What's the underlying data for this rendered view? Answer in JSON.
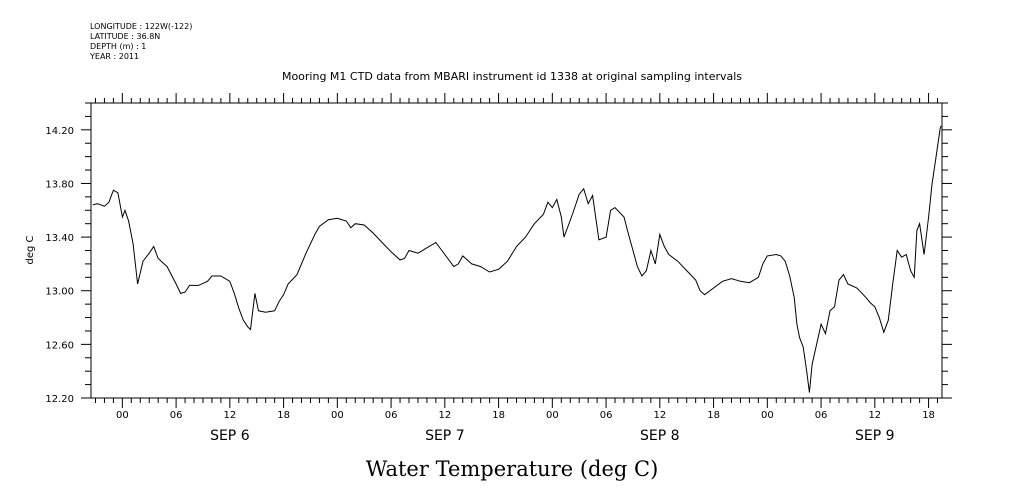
{
  "meta_lines": [
    "LONGITUDE : 122W(-122)",
    "LATITUDE : 36.8N",
    "DEPTH (m) : 1",
    "YEAR : 2011"
  ],
  "chart_data": {
    "type": "line",
    "title": "Mooring M1 CTD data from MBARI instrument id 1338 at original sampling intervals",
    "xlabel": "Water Temperature (deg C)",
    "ylabel": "deg C",
    "xlim": [
      -3.5,
      91.5
    ],
    "ylim": [
      12.2,
      14.4
    ],
    "x_unit": "hours since SEP 6 00:00",
    "x_tick_labels": [
      "00",
      "06",
      "12",
      "18",
      "00",
      "06",
      "12",
      "18",
      "00",
      "06",
      "12",
      "18",
      "00",
      "06",
      "12",
      "18"
    ],
    "x_tick_hours": [
      0,
      6,
      12,
      18,
      24,
      30,
      36,
      42,
      48,
      54,
      60,
      66,
      72,
      78,
      84,
      90
    ],
    "day_labels": [
      "SEP 6",
      "SEP 7",
      "SEP 8",
      "SEP 9"
    ],
    "day_label_hours": [
      12,
      36,
      60,
      84
    ],
    "y_tick_labels": [
      "12.20",
      "12.60",
      "13.00",
      "13.40",
      "13.80",
      "14.20"
    ],
    "y_ticks": [
      12.2,
      12.6,
      13.0,
      13.4,
      13.8,
      14.2
    ],
    "grid": false,
    "series": [
      {
        "name": "",
        "color": "#000000",
        "points": [
          [
            -3.3,
            13.64
          ],
          [
            -2.8,
            13.65
          ],
          [
            -2.0,
            13.63
          ],
          [
            -1.5,
            13.66
          ],
          [
            -1.0,
            13.75
          ],
          [
            -0.5,
            13.73
          ],
          [
            0.0,
            13.55
          ],
          [
            0.3,
            13.6
          ],
          [
            0.7,
            13.52
          ],
          [
            1.2,
            13.35
          ],
          [
            1.7,
            13.05
          ],
          [
            2.3,
            13.22
          ],
          [
            3.0,
            13.28
          ],
          [
            3.5,
            13.33
          ],
          [
            4.0,
            13.24
          ],
          [
            5.0,
            13.18
          ],
          [
            6.0,
            13.05
          ],
          [
            6.5,
            12.98
          ],
          [
            7.0,
            12.99
          ],
          [
            7.5,
            13.04
          ],
          [
            8.5,
            13.04
          ],
          [
            9.5,
            13.07
          ],
          [
            10.0,
            13.11
          ],
          [
            11.0,
            13.11
          ],
          [
            12.0,
            13.07
          ],
          [
            12.5,
            12.98
          ],
          [
            13.0,
            12.87
          ],
          [
            13.5,
            12.78
          ],
          [
            14.0,
            12.73
          ],
          [
            14.3,
            12.71
          ],
          [
            14.8,
            12.98
          ],
          [
            15.2,
            12.85
          ],
          [
            16.0,
            12.84
          ],
          [
            17.0,
            12.85
          ],
          [
            17.5,
            12.92
          ],
          [
            18.0,
            12.97
          ],
          [
            18.5,
            13.05
          ],
          [
            19.5,
            13.12
          ],
          [
            20.5,
            13.28
          ],
          [
            21.5,
            13.42
          ],
          [
            22.0,
            13.48
          ],
          [
            23.0,
            13.53
          ],
          [
            24.0,
            13.54
          ],
          [
            25.0,
            13.52
          ],
          [
            25.5,
            13.47
          ],
          [
            26.0,
            13.5
          ],
          [
            27.0,
            13.49
          ],
          [
            28.0,
            13.43
          ],
          [
            29.0,
            13.36
          ],
          [
            30.0,
            13.29
          ],
          [
            31.0,
            13.23
          ],
          [
            31.5,
            13.24
          ],
          [
            32.0,
            13.3
          ],
          [
            33.0,
            13.28
          ],
          [
            34.0,
            13.32
          ],
          [
            35.0,
            13.36
          ],
          [
            36.0,
            13.27
          ],
          [
            37.0,
            13.18
          ],
          [
            37.5,
            13.2
          ],
          [
            38.0,
            13.26
          ],
          [
            39.0,
            13.2
          ],
          [
            40.0,
            13.18
          ],
          [
            41.0,
            13.14
          ],
          [
            42.0,
            13.16
          ],
          [
            43.0,
            13.22
          ],
          [
            44.0,
            13.33
          ],
          [
            45.0,
            13.4
          ],
          [
            46.0,
            13.5
          ],
          [
            47.0,
            13.57
          ],
          [
            47.5,
            13.66
          ],
          [
            48.0,
            13.62
          ],
          [
            48.5,
            13.68
          ],
          [
            49.0,
            13.55
          ],
          [
            49.3,
            13.4
          ],
          [
            49.8,
            13.49
          ],
          [
            50.3,
            13.58
          ],
          [
            51.0,
            13.72
          ],
          [
            51.5,
            13.76
          ],
          [
            52.0,
            13.65
          ],
          [
            52.5,
            13.71
          ],
          [
            53.2,
            13.38
          ],
          [
            54.0,
            13.4
          ],
          [
            54.5,
            13.6
          ],
          [
            55.0,
            13.62
          ],
          [
            56.0,
            13.55
          ],
          [
            56.5,
            13.42
          ],
          [
            57.0,
            13.3
          ],
          [
            57.5,
            13.18
          ],
          [
            58.0,
            13.11
          ],
          [
            58.5,
            13.15
          ],
          [
            59.0,
            13.3
          ],
          [
            59.5,
            13.2
          ],
          [
            60.0,
            13.42
          ],
          [
            60.5,
            13.33
          ],
          [
            61.0,
            13.27
          ],
          [
            62.0,
            13.22
          ],
          [
            63.0,
            13.15
          ],
          [
            64.0,
            13.08
          ],
          [
            64.5,
            13.0
          ],
          [
            65.0,
            12.97
          ],
          [
            66.0,
            13.02
          ],
          [
            67.0,
            13.07
          ],
          [
            68.0,
            13.09
          ],
          [
            69.0,
            13.07
          ],
          [
            70.0,
            13.06
          ],
          [
            71.0,
            13.1
          ],
          [
            71.5,
            13.2
          ],
          [
            72.0,
            13.26
          ],
          [
            73.0,
            13.27
          ],
          [
            73.5,
            13.26
          ],
          [
            74.0,
            13.22
          ],
          [
            74.5,
            13.11
          ],
          [
            75.0,
            12.95
          ],
          [
            75.3,
            12.75
          ],
          [
            75.6,
            12.65
          ],
          [
            76.0,
            12.58
          ],
          [
            76.4,
            12.4
          ],
          [
            76.7,
            12.24
          ],
          [
            77.0,
            12.45
          ],
          [
            77.5,
            12.6
          ],
          [
            78.0,
            12.75
          ],
          [
            78.5,
            12.68
          ],
          [
            79.0,
            12.85
          ],
          [
            79.5,
            12.88
          ],
          [
            80.0,
            13.08
          ],
          [
            80.5,
            13.12
          ],
          [
            81.0,
            13.05
          ],
          [
            82.0,
            13.02
          ],
          [
            83.0,
            12.95
          ],
          [
            83.5,
            12.91
          ],
          [
            84.0,
            12.88
          ],
          [
            84.5,
            12.8
          ],
          [
            85.0,
            12.69
          ],
          [
            85.5,
            12.78
          ],
          [
            86.0,
            13.05
          ],
          [
            86.5,
            13.3
          ],
          [
            87.0,
            13.25
          ],
          [
            87.5,
            13.27
          ],
          [
            88.0,
            13.15
          ],
          [
            88.4,
            13.1
          ],
          [
            88.7,
            13.45
          ],
          [
            89.0,
            13.5
          ],
          [
            89.5,
            13.27
          ],
          [
            90.0,
            13.55
          ],
          [
            90.4,
            13.8
          ],
          [
            90.8,
            13.98
          ],
          [
            91.1,
            14.12
          ],
          [
            91.3,
            14.21
          ],
          [
            91.4,
            14.23
          ]
        ]
      }
    ]
  }
}
